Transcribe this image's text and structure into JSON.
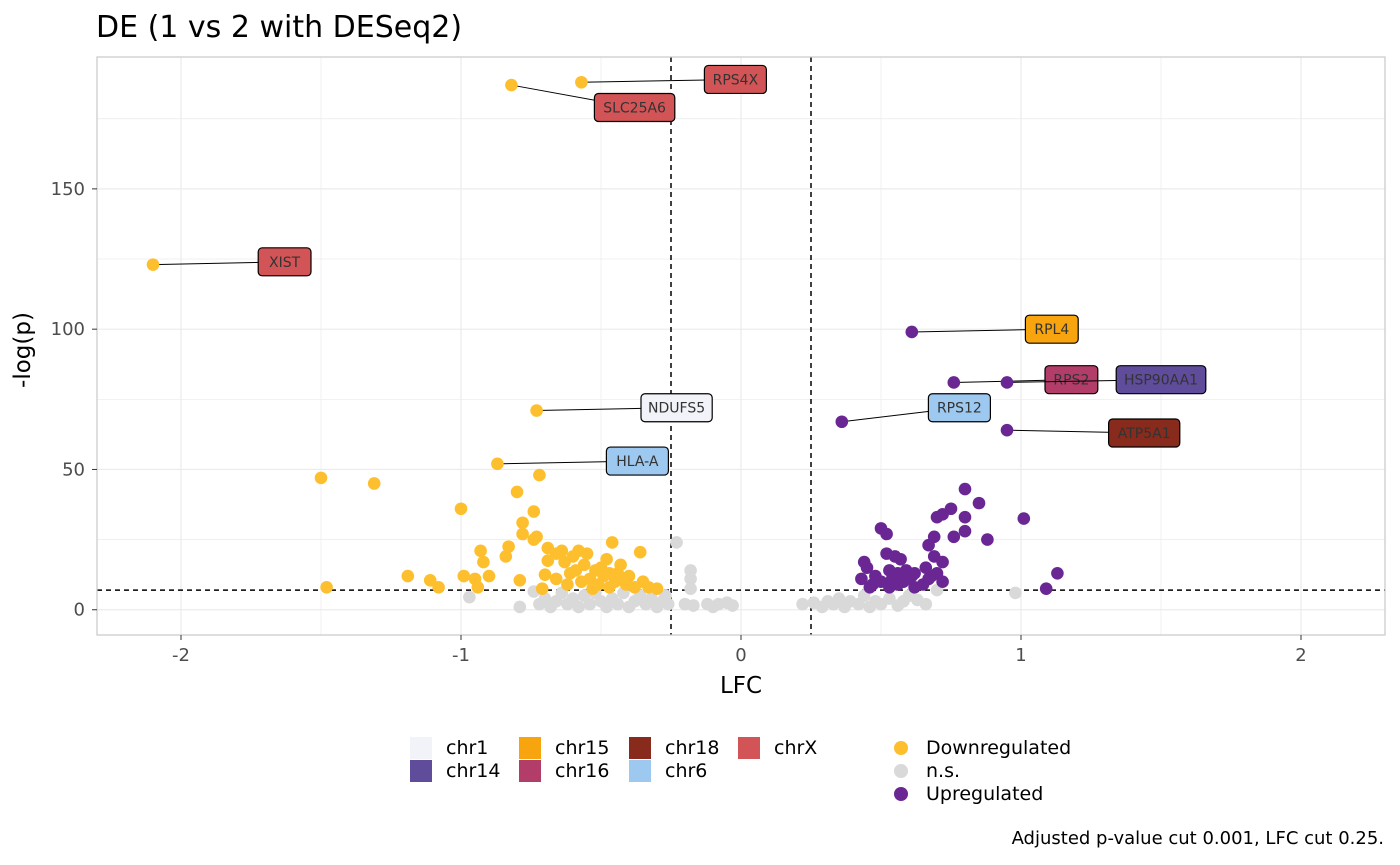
{
  "chart_data": {
    "type": "scatter",
    "title": "DE (1 vs 2 with DESeq2)",
    "xlabel": "LFC",
    "ylabel": "-log(p)",
    "caption": "Adjusted p-value cut 0.001, LFC cut 0.25.",
    "xlim": [
      -2.3,
      2.3
    ],
    "ylim": [
      -9,
      197
    ],
    "xticks": [
      -2,
      -1,
      0,
      1,
      2
    ],
    "xtick_labels": [
      "-2",
      "-1",
      "0",
      "1",
      "2"
    ],
    "yticks": [
      0,
      50,
      100,
      150
    ],
    "ytick_labels": [
      "0",
      "50",
      "100",
      "150"
    ],
    "grid": true,
    "thresholds": {
      "lfc": [
        -0.25,
        0.25
      ],
      "neglogp": 7
    },
    "status_colors": {
      "Downregulated": "#FDBF2D",
      "n.s.": "#D9D9D9",
      "Upregulated": "#6A2693"
    },
    "series": [
      {
        "name": "Downregulated",
        "points": [
          [
            -1.5,
            47
          ],
          [
            -1.31,
            45
          ],
          [
            -1.48,
            8
          ],
          [
            -1.19,
            12
          ],
          [
            -1.11,
            10.5
          ],
          [
            -1.08,
            8
          ],
          [
            -1.0,
            36
          ],
          [
            -0.99,
            12
          ],
          [
            -0.95,
            11
          ],
          [
            -0.93,
            21
          ],
          [
            -0.92,
            17
          ],
          [
            -0.94,
            8
          ],
          [
            -0.9,
            12
          ],
          [
            -0.8,
            42
          ],
          [
            -0.78,
            31
          ],
          [
            -0.78,
            27
          ],
          [
            -0.84,
            19
          ],
          [
            -0.83,
            22.5
          ],
          [
            -0.79,
            10.5
          ],
          [
            -0.74,
            35
          ],
          [
            -0.73,
            26
          ],
          [
            -0.72,
            48
          ],
          [
            -0.74,
            25
          ],
          [
            -0.69,
            22
          ],
          [
            -0.69,
            17.5
          ],
          [
            -0.7,
            12.5
          ],
          [
            -0.66,
            20
          ],
          [
            -0.64,
            21
          ],
          [
            -0.63,
            17
          ],
          [
            -0.61,
            13
          ],
          [
            -0.6,
            19
          ],
          [
            -0.58,
            21
          ],
          [
            -0.56,
            16
          ],
          [
            -0.55,
            20
          ],
          [
            -0.54,
            11
          ],
          [
            -0.52,
            14
          ],
          [
            -0.51,
            9
          ],
          [
            -0.5,
            15
          ],
          [
            -0.49,
            12
          ],
          [
            -0.48,
            18
          ],
          [
            -0.47,
            8
          ],
          [
            -0.46,
            24
          ],
          [
            -0.45,
            10
          ],
          [
            -0.44,
            13
          ],
          [
            -0.43,
            16
          ],
          [
            -0.42,
            11
          ],
          [
            -0.41,
            9
          ],
          [
            -0.4,
            12
          ],
          [
            -0.38,
            8
          ],
          [
            -0.36,
            20.5
          ],
          [
            -0.35,
            10
          ],
          [
            -0.33,
            8
          ],
          [
            -0.3,
            7.5
          ],
          [
            -0.62,
            9
          ],
          [
            -0.57,
            10
          ],
          [
            -0.66,
            11
          ],
          [
            -0.53,
            7.5
          ],
          [
            -0.71,
            7.5
          ],
          [
            -0.47,
            13
          ],
          [
            -0.59,
            14
          ]
        ]
      },
      {
        "name": "n.s.",
        "points": [
          [
            -0.97,
            4.5
          ],
          [
            -0.79,
            1
          ],
          [
            -0.74,
            6.5
          ],
          [
            -0.72,
            2
          ],
          [
            -0.7,
            4
          ],
          [
            -0.68,
            1
          ],
          [
            -0.66,
            3
          ],
          [
            -0.64,
            6
          ],
          [
            -0.62,
            2
          ],
          [
            -0.6,
            4
          ],
          [
            -0.58,
            1
          ],
          [
            -0.56,
            5
          ],
          [
            -0.54,
            2
          ],
          [
            -0.52,
            6
          ],
          [
            -0.5,
            3
          ],
          [
            -0.48,
            1
          ],
          [
            -0.46,
            4
          ],
          [
            -0.44,
            2
          ],
          [
            -0.42,
            6
          ],
          [
            -0.4,
            1
          ],
          [
            -0.38,
            3
          ],
          [
            -0.36,
            5
          ],
          [
            -0.34,
            2
          ],
          [
            -0.32,
            4
          ],
          [
            -0.3,
            1
          ],
          [
            -0.28,
            3
          ],
          [
            -0.27,
            5
          ],
          [
            -0.26,
            2
          ],
          [
            -0.23,
            24
          ],
          [
            -0.18,
            14
          ],
          [
            -0.18,
            11
          ],
          [
            -0.18,
            7.5
          ],
          [
            -0.2,
            2
          ],
          [
            -0.17,
            1.5
          ],
          [
            -0.12,
            2
          ],
          [
            -0.1,
            1
          ],
          [
            -0.08,
            2
          ],
          [
            -0.05,
            2.5
          ],
          [
            -0.03,
            1.5
          ],
          [
            0.22,
            2
          ],
          [
            0.26,
            2.5
          ],
          [
            0.29,
            1
          ],
          [
            0.31,
            3
          ],
          [
            0.33,
            2
          ],
          [
            0.35,
            4
          ],
          [
            0.37,
            1
          ],
          [
            0.39,
            3
          ],
          [
            0.42,
            2
          ],
          [
            0.44,
            5
          ],
          [
            0.46,
            1
          ],
          [
            0.48,
            3
          ],
          [
            0.5,
            2
          ],
          [
            0.53,
            4
          ],
          [
            0.56,
            1.5
          ],
          [
            0.58,
            3
          ],
          [
            0.6,
            5
          ],
          [
            0.63,
            3.5
          ],
          [
            0.66,
            2
          ],
          [
            0.7,
            7
          ],
          [
            0.98,
            6
          ]
        ]
      },
      {
        "name": "Upregulated",
        "points": [
          [
            0.8,
            43
          ],
          [
            0.85,
            38
          ],
          [
            0.75,
            36
          ],
          [
            0.72,
            34
          ],
          [
            0.7,
            33
          ],
          [
            0.8,
            33
          ],
          [
            1.01,
            32.5
          ],
          [
            0.5,
            29
          ],
          [
            0.8,
            28
          ],
          [
            0.52,
            27
          ],
          [
            0.76,
            26
          ],
          [
            0.69,
            26
          ],
          [
            0.88,
            25
          ],
          [
            0.67,
            23
          ],
          [
            0.52,
            20
          ],
          [
            0.69,
            19
          ],
          [
            0.55,
            19
          ],
          [
            0.57,
            18
          ],
          [
            0.44,
            17
          ],
          [
            0.72,
            17
          ],
          [
            0.45,
            15
          ],
          [
            0.53,
            14
          ],
          [
            0.56,
            13
          ],
          [
            0.59,
            14
          ],
          [
            0.62,
            13
          ],
          [
            0.66,
            15
          ],
          [
            0.68,
            12
          ],
          [
            0.7,
            13
          ],
          [
            0.43,
            11
          ],
          [
            0.47,
            9
          ],
          [
            0.5,
            10
          ],
          [
            0.53,
            8
          ],
          [
            0.56,
            9
          ],
          [
            0.59,
            11
          ],
          [
            0.62,
            8
          ],
          [
            0.65,
            9
          ],
          [
            0.72,
            10
          ],
          [
            1.13,
            13
          ],
          [
            1.09,
            7.5
          ],
          [
            0.46,
            8
          ],
          [
            0.48,
            12
          ],
          [
            0.58,
            10
          ],
          [
            0.61,
            12
          ],
          [
            0.54,
            11
          ],
          [
            0.67,
            11
          ]
        ]
      }
    ],
    "labeled_genes": [
      {
        "gene": "RPS4X",
        "x": -0.57,
        "y": 188,
        "status": "Downregulated",
        "chr": "chrX",
        "lx": -0.02,
        "ly": 189
      },
      {
        "gene": "SLC25A6",
        "x": -0.82,
        "y": 187,
        "status": "Downregulated",
        "chr": "chrX",
        "lx": -0.38,
        "ly": 179
      },
      {
        "gene": "XIST",
        "x": -2.1,
        "y": 123,
        "status": "Downregulated",
        "chr": "chrX",
        "lx": -1.63,
        "ly": 124
      },
      {
        "gene": "NDUFS5",
        "x": -0.73,
        "y": 71,
        "status": "Downregulated",
        "chr": "chr1",
        "lx": -0.23,
        "ly": 72
      },
      {
        "gene": "HLA-A",
        "x": -0.87,
        "y": 52,
        "status": "Downregulated",
        "chr": "chr6",
        "lx": -0.37,
        "ly": 53
      },
      {
        "gene": "RPL4",
        "x": 0.61,
        "y": 99,
        "status": "Upregulated",
        "chr": "chr15",
        "lx": 1.11,
        "ly": 100
      },
      {
        "gene": "RPS2",
        "x": 0.76,
        "y": 81,
        "status": "Upregulated",
        "chr": "chr16",
        "lx": 1.18,
        "ly": 82
      },
      {
        "gene": "HSP90AA1",
        "x": 0.95,
        "y": 81,
        "status": "Upregulated",
        "chr": "chr14",
        "lx": 1.5,
        "ly": 82
      },
      {
        "gene": "RPS12",
        "x": 0.36,
        "y": 67,
        "status": "Upregulated",
        "chr": "chr6",
        "lx": 0.78,
        "ly": 72
      },
      {
        "gene": "ATP5A1",
        "x": 0.95,
        "y": 64,
        "status": "Upregulated",
        "chr": "chr18",
        "lx": 1.44,
        "ly": 63
      }
    ],
    "chr_colors": {
      "chr1": "#F1F3F8",
      "chr14": "#5F4C9B",
      "chr15": "#F7A40E",
      "chr16": "#B33D69",
      "chr18": "#882B1C",
      "chr6": "#9DC8EF",
      "chrX": "#D25456"
    },
    "legend_chr": [
      {
        "label": "chr1",
        "color": "#F1F3F8"
      },
      {
        "label": "chr14",
        "color": "#5F4C9B"
      },
      {
        "label": "chr15",
        "color": "#F7A40E"
      },
      {
        "label": "chr16",
        "color": "#B33D69"
      },
      {
        "label": "chr18",
        "color": "#882B1C"
      },
      {
        "label": "chr6",
        "color": "#9DC8EF"
      },
      {
        "label": "chrX",
        "color": "#D25456"
      }
    ],
    "legend_status": [
      {
        "label": "Downregulated",
        "color": "#FDBF2D"
      },
      {
        "label": "n.s.",
        "color": "#D9D9D9"
      },
      {
        "label": "Upregulated",
        "color": "#6A2693"
      }
    ]
  }
}
